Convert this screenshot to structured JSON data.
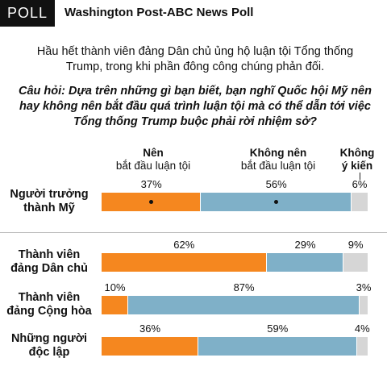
{
  "header": {
    "badge": "POLL",
    "source": "Washington Post-ABC News Poll"
  },
  "headline": "Hầu hết  thành viên đảng Dân chủ ủng hộ luận tội Tổng thống Trump, trong khi phần đông công chúng phản đối.",
  "question": "Câu hỏi: Dựa trên những gì bạn biết, bạn nghĩ Quốc hội Mỹ nên hay không nên bắt đầu quá trình luận tội mà có thể dẫn tới việc Tổng thống Trump buộc phải rời nhiệm sở?",
  "columns": {
    "yes": {
      "bold": "Nên",
      "sub": "bắt đầu luận tội"
    },
    "no": {
      "bold": "Không nên",
      "sub": "bắt đầu luận tội"
    },
    "na": {
      "line1": "Không",
      "line2": "ý kiến"
    }
  },
  "chart_data": {
    "type": "bar",
    "orientation": "horizontal-stacked",
    "categories": [
      "Người trưởng thành Mỹ",
      "Thành viên đảng Dân chủ",
      "Thành viên đảng Cộng hòa",
      "Những người độc lập"
    ],
    "series": [
      {
        "name": "Nên bắt đầu luận tội",
        "values": [
          37,
          62,
          10,
          36
        ],
        "color": "#f5871f"
      },
      {
        "name": "Không nên bắt đầu luận tội",
        "values": [
          56,
          29,
          87,
          59
        ],
        "color": "#7fb0c8"
      },
      {
        "name": "Không ý kiến",
        "values": [
          6,
          9,
          3,
          4
        ],
        "color": "#d6d6d6"
      }
    ],
    "labels": [
      [
        "37%",
        "56%",
        "6%"
      ],
      [
        "62%",
        "29%",
        "9%"
      ],
      [
        "10%",
        "87%",
        "3%"
      ],
      [
        "36%",
        "59%",
        "4%"
      ]
    ],
    "rows": [
      {
        "line1": "Người trưởng",
        "line2": "thành Mỹ"
      },
      {
        "line1": "Thành viên",
        "line2": "đảng Dân chủ"
      },
      {
        "line1": "Thành viên",
        "line2": "đảng Cộng hòa"
      },
      {
        "line1": "Những người",
        "line2": "độc lập"
      }
    ]
  }
}
